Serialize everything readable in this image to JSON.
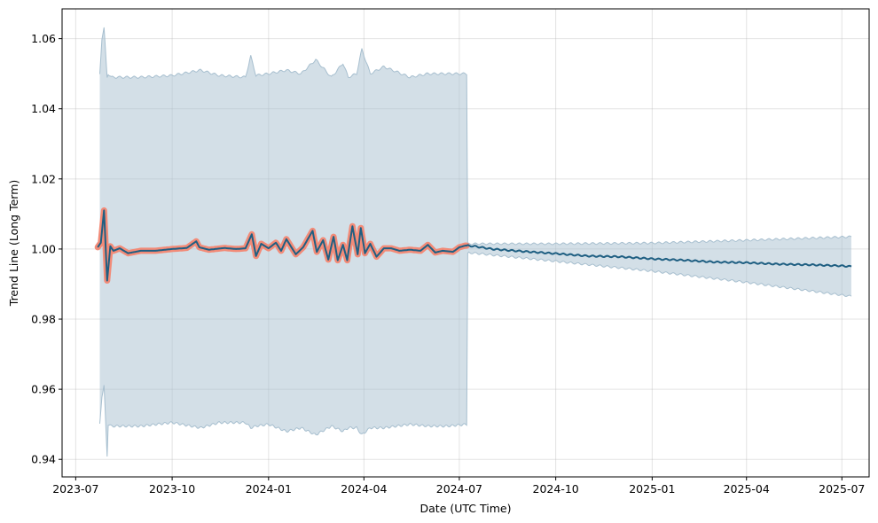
{
  "chart_data": {
    "type": "line",
    "title": "",
    "xlabel": "Date (UTC Time)",
    "ylabel": "Trend Line (Long Term)",
    "xlim": [
      "2023-06-18",
      "2025-07-27"
    ],
    "ylim": [
      0.935,
      1.0685
    ],
    "grid": true,
    "legend": "none",
    "x_ticks": [
      "2023-07",
      "2023-10",
      "2024-01",
      "2024-04",
      "2024-07",
      "2024-10",
      "2025-01",
      "2025-04",
      "2025-07"
    ],
    "y_ticks": [
      "0.94",
      "0.96",
      "0.98",
      "1.00",
      "1.02",
      "1.04",
      "1.06"
    ],
    "colors": {
      "trend_line": "#1f5f82",
      "historical_highlight": "#f28b78",
      "confidence_band": "#a7bfcf"
    },
    "series": [
      {
        "role": "trend",
        "x": [
          "2023-07-22",
          "2023-07-25",
          "2023-07-28",
          "2023-07-31",
          "2023-08-03",
          "2023-08-06",
          "2023-08-12",
          "2023-08-20",
          "2023-09-01",
          "2023-09-15",
          "2023-10-01",
          "2023-10-15",
          "2023-10-24",
          "2023-10-27",
          "2023-11-05",
          "2023-11-20",
          "2023-12-01",
          "2023-12-10",
          "2023-12-16",
          "2023-12-20",
          "2023-12-25",
          "2024-01-01",
          "2024-01-08",
          "2024-01-13",
          "2024-01-18",
          "2024-01-27",
          "2024-02-03",
          "2024-02-12",
          "2024-02-16",
          "2024-02-22",
          "2024-02-27",
          "2024-03-03",
          "2024-03-07",
          "2024-03-12",
          "2024-03-16",
          "2024-03-21",
          "2024-03-26",
          "2024-03-29",
          "2024-04-02",
          "2024-04-07",
          "2024-04-13",
          "2024-04-20",
          "2024-04-27",
          "2024-05-05",
          "2024-05-15",
          "2024-05-25",
          "2024-06-01",
          "2024-06-08",
          "2024-06-15",
          "2024-06-25",
          "2024-07-01",
          "2024-07-07",
          "2024-07-15",
          "2024-08-01",
          "2024-09-01",
          "2024-10-01",
          "2024-11-01",
          "2024-12-01",
          "2025-01-01",
          "2025-02-01",
          "2025-03-01",
          "2025-04-01",
          "2025-05-01",
          "2025-06-01",
          "2025-07-01",
          "2025-07-10"
        ],
        "values": [
          1.0005,
          1.0018,
          1.011,
          0.991,
          1.0008,
          0.9995,
          1.0002,
          0.9988,
          0.9995,
          0.9995,
          1.0,
          1.0003,
          1.0022,
          1.0005,
          0.9998,
          1.0003,
          1.0,
          1.0002,
          1.0042,
          0.998,
          1.0015,
          1.0002,
          1.0018,
          0.9995,
          1.0028,
          0.9985,
          1.0005,
          1.0052,
          0.9992,
          1.0025,
          0.997,
          1.0035,
          0.9968,
          1.0012,
          0.9968,
          1.0065,
          0.9985,
          1.006,
          0.9988,
          1.0015,
          0.9978,
          1.0002,
          1.0002,
          0.9995,
          0.9998,
          0.9995,
          1.0012,
          0.999,
          0.9995,
          0.9992,
          1.0005,
          1.001,
          1.0008,
          1.0,
          0.9993,
          0.9987,
          0.998,
          0.9978,
          0.9972,
          0.9968,
          0.9963,
          0.9961,
          0.9957,
          0.9955,
          0.9952,
          0.995
        ]
      },
      {
        "role": "band_upper",
        "x": [
          "2023-07-24",
          "2023-07-26",
          "2023-07-28",
          "2023-07-31",
          "2023-08-01",
          "2023-08-04",
          "2023-09-01",
          "2023-10-01",
          "2023-10-28",
          "2023-11-15",
          "2023-12-10",
          "2023-12-15",
          "2023-12-20",
          "2024-01-01",
          "2024-01-18",
          "2024-02-01",
          "2024-02-15",
          "2024-03-01",
          "2024-03-12",
          "2024-03-17",
          "2024-03-25",
          "2024-03-30",
          "2024-04-07",
          "2024-04-20",
          "2024-05-15",
          "2024-06-01",
          "2024-06-20",
          "2024-07-08",
          "2024-07-09",
          "2024-10-01",
          "2025-01-01",
          "2025-04-01",
          "2025-07-10"
        ],
        "values": [
          1.05,
          1.06,
          1.063,
          1.049,
          1.05,
          1.049,
          1.049,
          1.0495,
          1.051,
          1.0495,
          1.049,
          1.055,
          1.0495,
          1.05,
          1.051,
          1.05,
          1.054,
          1.049,
          1.053,
          1.049,
          1.05,
          1.057,
          1.05,
          1.052,
          1.049,
          1.05,
          1.05,
          1.05,
          1.0015,
          1.0015,
          1.0017,
          1.0025,
          1.0035
        ]
      },
      {
        "role": "band_lower",
        "x": [
          "2023-07-24",
          "2023-07-26",
          "2023-07-28",
          "2023-07-31",
          "2023-08-01",
          "2023-08-04",
          "2023-09-01",
          "2023-10-01",
          "2023-10-28",
          "2023-11-15",
          "2023-12-10",
          "2023-12-15",
          "2023-12-20",
          "2024-01-01",
          "2024-01-18",
          "2024-02-01",
          "2024-02-15",
          "2024-03-01",
          "2024-03-12",
          "2024-03-17",
          "2024-03-25",
          "2024-03-30",
          "2024-04-07",
          "2024-04-20",
          "2024-05-15",
          "2024-06-01",
          "2024-06-20",
          "2024-07-08",
          "2024-07-09",
          "2024-10-01",
          "2025-01-01",
          "2025-04-01",
          "2025-07-10"
        ],
        "values": [
          0.95,
          0.958,
          0.961,
          0.941,
          0.95,
          0.9495,
          0.9495,
          0.9505,
          0.949,
          0.9505,
          0.9505,
          0.949,
          0.9495,
          0.95,
          0.948,
          0.949,
          0.947,
          0.9495,
          0.948,
          0.949,
          0.949,
          0.947,
          0.949,
          0.949,
          0.95,
          0.9495,
          0.9495,
          0.95,
          0.999,
          0.9965,
          0.9937,
          0.9905,
          0.9865
        ]
      }
    ],
    "highlight_range": [
      "2023-07-24",
      "2024-07-08"
    ]
  }
}
